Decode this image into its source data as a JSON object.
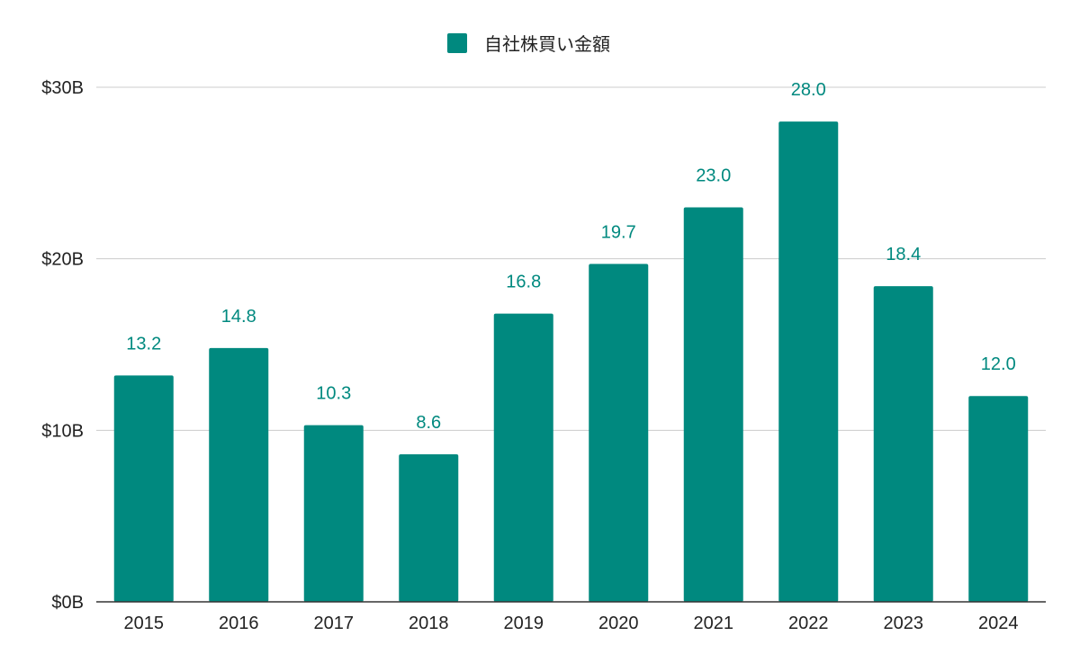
{
  "legend": {
    "label": "自社株買い金額"
  },
  "chart_data": {
    "type": "bar",
    "categories": [
      "2015",
      "2016",
      "2017",
      "2018",
      "2019",
      "2020",
      "2021",
      "2022",
      "2023",
      "2024"
    ],
    "series": [
      {
        "name": "自社株買い金額",
        "values": [
          13.2,
          14.8,
          10.3,
          8.6,
          16.8,
          19.7,
          23.0,
          28.0,
          18.4,
          12.0
        ],
        "data_labels": [
          "13.2",
          "14.8",
          "10.3",
          "8.6",
          "16.8",
          "19.7",
          "23.0",
          "28.0",
          "18.4",
          "12.0"
        ]
      }
    ],
    "yticks": [
      0,
      10,
      20,
      30
    ],
    "ytick_labels": [
      "$0B",
      "$10B",
      "$20B",
      "$30B"
    ],
    "ylim": [
      0,
      30
    ],
    "grid": true,
    "legend_position": "top-center",
    "bar_color": "#00897f",
    "label_color": "#00897f",
    "grid_color": "#cccccc",
    "axis_color": "#333333"
  }
}
